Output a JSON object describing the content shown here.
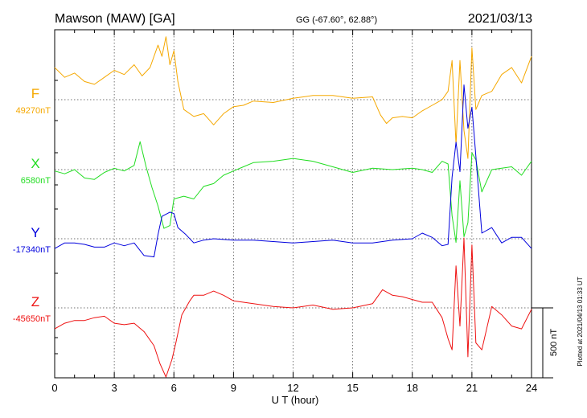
{
  "header": {
    "station": "Mawson (MAW)  [GA]",
    "coords": "GG (-67.60°,  62.88°)",
    "date": "2021/03/13"
  },
  "footer_note": "Plotted at 2021/04/13 01:33 UT",
  "scale_bar_label": "500 nT",
  "chart_data": {
    "type": "line",
    "xlabel": "U T (hour)",
    "xlim": [
      0,
      24
    ],
    "xticks": [
      "0",
      "3",
      "6",
      "9",
      "12",
      "15",
      "18",
      "21",
      "24"
    ],
    "scale_nT": 500,
    "series": [
      {
        "name": "F",
        "baseline_label": "49270nT",
        "baseline_nT": 49270,
        "color": "#f5a800",
        "x": [
          0,
          0.5,
          1,
          1.5,
          2,
          2.5,
          3,
          3.5,
          4,
          4.4,
          4.8,
          5.2,
          5.4,
          5.6,
          5.8,
          6.0,
          6.2,
          6.5,
          7,
          7.5,
          8,
          8.5,
          9,
          9.5,
          10,
          11,
          12,
          13,
          14,
          15,
          16,
          16.4,
          16.7,
          17,
          17.5,
          18,
          18.5,
          19,
          19.5,
          19.8,
          20,
          20.2,
          20.4,
          20.6,
          20.8,
          21,
          21.2,
          21.5,
          22,
          22.5,
          23,
          23.5,
          24
        ],
        "y": [
          49500,
          49430,
          49460,
          49400,
          49380,
          49430,
          49480,
          49450,
          49520,
          49440,
          49500,
          49660,
          49580,
          49720,
          49520,
          49620,
          49400,
          49200,
          49150,
          49170,
          49090,
          49170,
          49220,
          49230,
          49260,
          49250,
          49280,
          49300,
          49300,
          49280,
          49290,
          49160,
          49100,
          49140,
          49150,
          49140,
          49190,
          49230,
          49270,
          49330,
          49550,
          48950,
          49550,
          49050,
          48850,
          49640,
          49200,
          49300,
          49330,
          49450,
          49500,
          49390,
          49580
        ]
      },
      {
        "name": "X",
        "baseline_label": "6580nT",
        "baseline_nT": 6580,
        "color": "#22dd22",
        "x": [
          0,
          0.5,
          1,
          1.5,
          2,
          2.5,
          3,
          3.5,
          4,
          4.3,
          4.6,
          4.9,
          5.2,
          5.5,
          5.8,
          6.0,
          6.5,
          7,
          7.5,
          8,
          8.5,
          9,
          9.5,
          10,
          11,
          12,
          13,
          14,
          15,
          16,
          17,
          18,
          18.5,
          19,
          19.5,
          19.8,
          20,
          20.2,
          20.4,
          20.6,
          20.8,
          21,
          21.2,
          21.5,
          22,
          22.5,
          23,
          23.5,
          24
        ],
        "y": [
          6570,
          6550,
          6580,
          6520,
          6510,
          6560,
          6590,
          6570,
          6610,
          6780,
          6600,
          6450,
          6320,
          6160,
          6180,
          6370,
          6390,
          6370,
          6460,
          6480,
          6540,
          6570,
          6600,
          6630,
          6640,
          6660,
          6640,
          6600,
          6560,
          6590,
          6580,
          6590,
          6580,
          6560,
          6640,
          6620,
          6250,
          6060,
          6500,
          6100,
          6200,
          6700,
          6650,
          6420,
          6580,
          6590,
          6600,
          6540,
          6640
        ]
      },
      {
        "name": "Y",
        "baseline_label": "-17340nT",
        "baseline_nT": -17340,
        "color": "#0000dd",
        "x": [
          0,
          0.5,
          1,
          1.5,
          2,
          2.5,
          3,
          3.5,
          4,
          4.5,
          5,
          5.2,
          5.4,
          5.8,
          6.0,
          6.2,
          6.6,
          7,
          7.5,
          8,
          9,
          10,
          11,
          12,
          13,
          14,
          15,
          16,
          17,
          18,
          18.5,
          19,
          19.5,
          19.8,
          20,
          20.2,
          20.4,
          20.6,
          20.8,
          21,
          21.2,
          21.5,
          22,
          22.5,
          23,
          23.5,
          24
        ],
        "y": [
          -17410,
          -17370,
          -17370,
          -17380,
          -17400,
          -17400,
          -17370,
          -17390,
          -17370,
          -17460,
          -17470,
          -17310,
          -17180,
          -17150,
          -17160,
          -17260,
          -17310,
          -17370,
          -17350,
          -17340,
          -17350,
          -17350,
          -17360,
          -17370,
          -17360,
          -17350,
          -17370,
          -17370,
          -17350,
          -17340,
          -17300,
          -17330,
          -17390,
          -17380,
          -16900,
          -16650,
          -16860,
          -16240,
          -16550,
          -16400,
          -16750,
          -17300,
          -17260,
          -17370,
          -17330,
          -17330,
          -17410
        ]
      },
      {
        "name": "Z",
        "baseline_label": "-45650nT",
        "baseline_nT": -45650,
        "color": "#ee1111",
        "x": [
          0,
          0.5,
          1,
          1.5,
          2,
          2.5,
          3,
          3.5,
          4,
          4.5,
          5,
          5.3,
          5.6,
          5.9,
          6.1,
          6.4,
          6.8,
          7,
          7.5,
          8,
          8.5,
          9,
          10,
          11,
          12,
          13,
          14,
          15,
          16,
          16.5,
          17,
          17.5,
          18,
          18.5,
          19,
          19.5,
          19.8,
          20,
          20.2,
          20.4,
          20.6,
          20.8,
          21,
          21.2,
          21.5,
          22,
          22.5,
          23,
          23.5,
          24
        ],
        "y": [
          -45800,
          -45760,
          -45740,
          -45740,
          -45720,
          -45710,
          -45760,
          -45770,
          -45760,
          -45820,
          -45920,
          -46050,
          -46250,
          -46020,
          -45900,
          -45700,
          -45600,
          -45560,
          -45560,
          -45530,
          -45560,
          -45600,
          -45620,
          -45640,
          -45650,
          -45630,
          -45660,
          -45650,
          -45620,
          -45520,
          -45560,
          -45570,
          -45590,
          -45610,
          -45610,
          -45720,
          -45870,
          -45950,
          -45350,
          -45780,
          -45150,
          -46000,
          -45200,
          -45900,
          -45950,
          -45640,
          -45700,
          -45780,
          -45800,
          -45660
        ]
      }
    ]
  }
}
